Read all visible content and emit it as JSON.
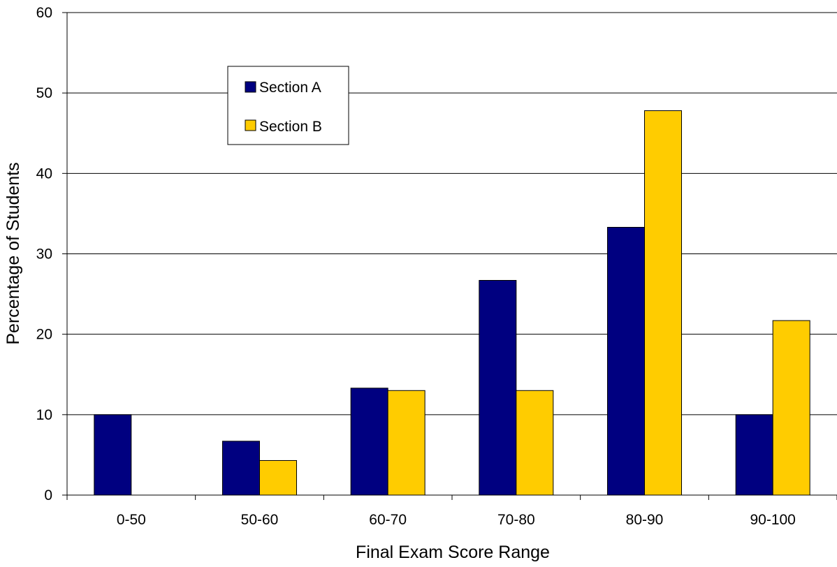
{
  "chart_data": {
    "type": "bar",
    "title": "",
    "xlabel": "Final Exam Score Range",
    "ylabel": "Percentage of Students",
    "categories": [
      "0-50",
      "50-60",
      "60-70",
      "70-80",
      "80-90",
      "90-100"
    ],
    "series": [
      {
        "name": "Section A",
        "color": "#000080",
        "values": [
          10.0,
          6.7,
          13.3,
          26.7,
          33.3,
          10.0
        ]
      },
      {
        "name": "Section B",
        "color": "#FFCC00",
        "values": [
          0,
          4.3,
          13.0,
          13.0,
          47.8,
          21.7
        ]
      }
    ],
    "ylim": [
      0,
      60
    ],
    "yticks": [
      "0",
      "10",
      "20",
      "30",
      "40",
      "50",
      "60"
    ],
    "grid": "horizontal",
    "legend_position": "upper-left"
  }
}
